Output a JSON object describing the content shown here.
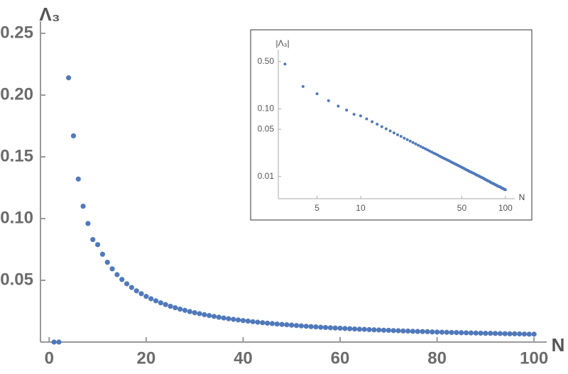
{
  "chart_data": [
    {
      "type": "scatter",
      "x_label": "N",
      "y_label": "Λ₃",
      "color": "#5079bb",
      "x": [
        1,
        2,
        4,
        5,
        6,
        7,
        8,
        9,
        10,
        11,
        12,
        13,
        14,
        15,
        16,
        17,
        18,
        19,
        20,
        21,
        22,
        23,
        24,
        25,
        26,
        27,
        28,
        29,
        30,
        31,
        32,
        33,
        34,
        35,
        36,
        37,
        38,
        39,
        40,
        41,
        42,
        43,
        44,
        45,
        46,
        47,
        48,
        49,
        50,
        51,
        52,
        53,
        54,
        55,
        56,
        57,
        58,
        59,
        60,
        61,
        62,
        63,
        64,
        65,
        66,
        67,
        68,
        69,
        70,
        71,
        72,
        73,
        74,
        75,
        76,
        77,
        78,
        79,
        80,
        81,
        82,
        83,
        84,
        85,
        86,
        87,
        88,
        89,
        90,
        91,
        92,
        93,
        94,
        95,
        96,
        97,
        98,
        99,
        100
      ],
      "values": [
        0,
        0,
        0.214,
        0.167,
        0.132,
        0.11,
        0.096,
        0.083,
        0.0789,
        0.0711,
        0.0646,
        0.0593,
        0.0546,
        0.0507,
        0.0472,
        0.0442,
        0.0415,
        0.0392,
        0.037,
        0.0351,
        0.0334,
        0.0318,
        0.0304,
        0.029,
        0.0278,
        0.0267,
        0.0257,
        0.0247,
        0.0238,
        0.023,
        0.0222,
        0.0215,
        0.0208,
        0.0201,
        0.0195,
        0.0189,
        0.0184,
        0.0179,
        0.0174,
        0.017,
        0.0165,
        0.0161,
        0.0157,
        0.0153,
        0.015,
        0.0146,
        0.0143,
        0.014,
        0.0137,
        0.0134,
        0.0131,
        0.0128,
        0.0125,
        0.0123,
        0.012,
        0.0118,
        0.0116,
        0.0114,
        0.0112,
        0.011,
        0.0108,
        0.0106,
        0.0104,
        0.0103,
        0.0101,
        0.0099,
        0.0098,
        0.0096,
        0.0095,
        0.0093,
        0.0092,
        0.009,
        0.0089,
        0.0087,
        0.0086,
        0.0085,
        0.0084,
        0.0082,
        0.0081,
        0.008,
        0.0079,
        0.0078,
        0.0077,
        0.0076,
        0.0075,
        0.0074,
        0.0073,
        0.0072,
        0.0071,
        0.0071,
        0.007,
        0.0069,
        0.0068,
        0.0067,
        0.0067,
        0.0066,
        0.0065,
        0.0064,
        0.0064
      ],
      "xlim": [
        -1.8,
        101
      ],
      "ylim": [
        0,
        0.25
      ],
      "xticks": [
        0,
        20,
        40,
        60,
        80,
        100
      ],
      "yticks": [
        0.05,
        {
          "value": 0.1,
          "label": "0.10"
        },
        0.15,
        {
          "value": 0.2,
          "label": "0.20"
        },
        0.25
      ]
    },
    {
      "type": "scatter",
      "x_label": "N",
      "y_label": "|Λ₃|",
      "color": "#5079bb",
      "log_x": true,
      "log_y": true,
      "x": [
        3,
        4,
        5,
        6,
        7,
        8,
        9,
        10,
        11,
        12,
        13,
        14,
        15,
        16,
        17,
        18,
        19,
        20,
        21,
        22,
        23,
        24,
        25,
        26,
        27,
        28,
        29,
        30,
        31,
        32,
        33,
        34,
        35,
        36,
        37,
        38,
        39,
        40,
        41,
        42,
        43,
        44,
        45,
        46,
        47,
        48,
        49,
        50,
        51,
        52,
        53,
        54,
        55,
        56,
        57,
        58,
        59,
        60,
        61,
        62,
        63,
        64,
        65,
        66,
        67,
        68,
        69,
        70,
        71,
        72,
        73,
        74,
        75,
        76,
        77,
        78,
        79,
        80,
        81,
        82,
        83,
        84,
        85,
        86,
        87,
        88,
        89,
        90,
        91,
        92,
        93,
        94,
        95,
        96,
        97,
        98,
        99,
        100
      ],
      "values": [
        0.46,
        0.214,
        0.167,
        0.132,
        0.11,
        0.096,
        0.083,
        0.0789,
        0.0711,
        0.0646,
        0.0593,
        0.0546,
        0.0507,
        0.0472,
        0.0442,
        0.0415,
        0.0392,
        0.037,
        0.0351,
        0.0334,
        0.0318,
        0.0304,
        0.029,
        0.0278,
        0.0267,
        0.0257,
        0.0247,
        0.0238,
        0.023,
        0.0222,
        0.0215,
        0.0208,
        0.0201,
        0.0195,
        0.0189,
        0.0184,
        0.0179,
        0.0174,
        0.017,
        0.0165,
        0.0161,
        0.0157,
        0.0153,
        0.015,
        0.0146,
        0.0143,
        0.014,
        0.0137,
        0.0134,
        0.0131,
        0.0128,
        0.0125,
        0.0123,
        0.012,
        0.0118,
        0.0116,
        0.0114,
        0.0112,
        0.011,
        0.0108,
        0.0106,
        0.0104,
        0.0103,
        0.0101,
        0.0099,
        0.0098,
        0.0096,
        0.0095,
        0.0093,
        0.0092,
        0.009,
        0.0089,
        0.0087,
        0.0086,
        0.0085,
        0.0084,
        0.0082,
        0.0081,
        0.008,
        0.0079,
        0.0078,
        0.0077,
        0.0076,
        0.0075,
        0.0074,
        0.0073,
        0.0072,
        0.0071,
        0.0071,
        0.007,
        0.0069,
        0.0068,
        0.0067,
        0.0067,
        0.0066,
        0.0065,
        0.0064,
        0.0064
      ],
      "xlim": [
        2.7,
        116
      ],
      "ylim": [
        0.0047,
        0.75
      ],
      "xticks": [
        5,
        10,
        50,
        100
      ],
      "yticks": [
        {
          "value": 0.01,
          "label": "0.01"
        },
        {
          "value": 0.05,
          "label": "0.05"
        },
        {
          "value": 0.1,
          "label": "0.10"
        },
        {
          "value": 0.5,
          "label": "0.50"
        }
      ]
    }
  ]
}
